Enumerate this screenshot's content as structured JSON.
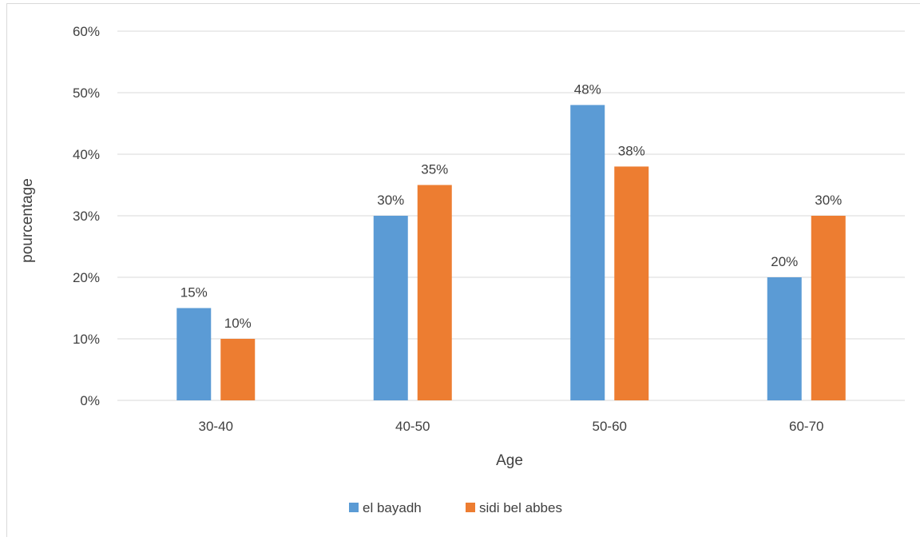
{
  "chart_data": {
    "type": "bar",
    "title": "",
    "xlabel": "Age",
    "ylabel": "pourcentage",
    "categories": [
      "30-40",
      "40-50",
      "50-60",
      "60-70"
    ],
    "series": [
      {
        "name": "el bayadh",
        "color": "#5b9bd5",
        "values": [
          15,
          30,
          48,
          20
        ],
        "labels": [
          "15%",
          "30%",
          "48%",
          "20%"
        ]
      },
      {
        "name": "sidi bel abbes",
        "color": "#ed7d31",
        "values": [
          10,
          35,
          38,
          30
        ],
        "labels": [
          "10%",
          "35%",
          "38%",
          "30%"
        ]
      }
    ],
    "ylim": [
      0,
      60
    ],
    "yticks": [
      0,
      10,
      20,
      30,
      40,
      50,
      60
    ],
    "ytick_labels": [
      "0%",
      "10%",
      "20%",
      "30%",
      "40%",
      "50%",
      "60%"
    ],
    "grid": true,
    "legend_position": "bottom"
  }
}
